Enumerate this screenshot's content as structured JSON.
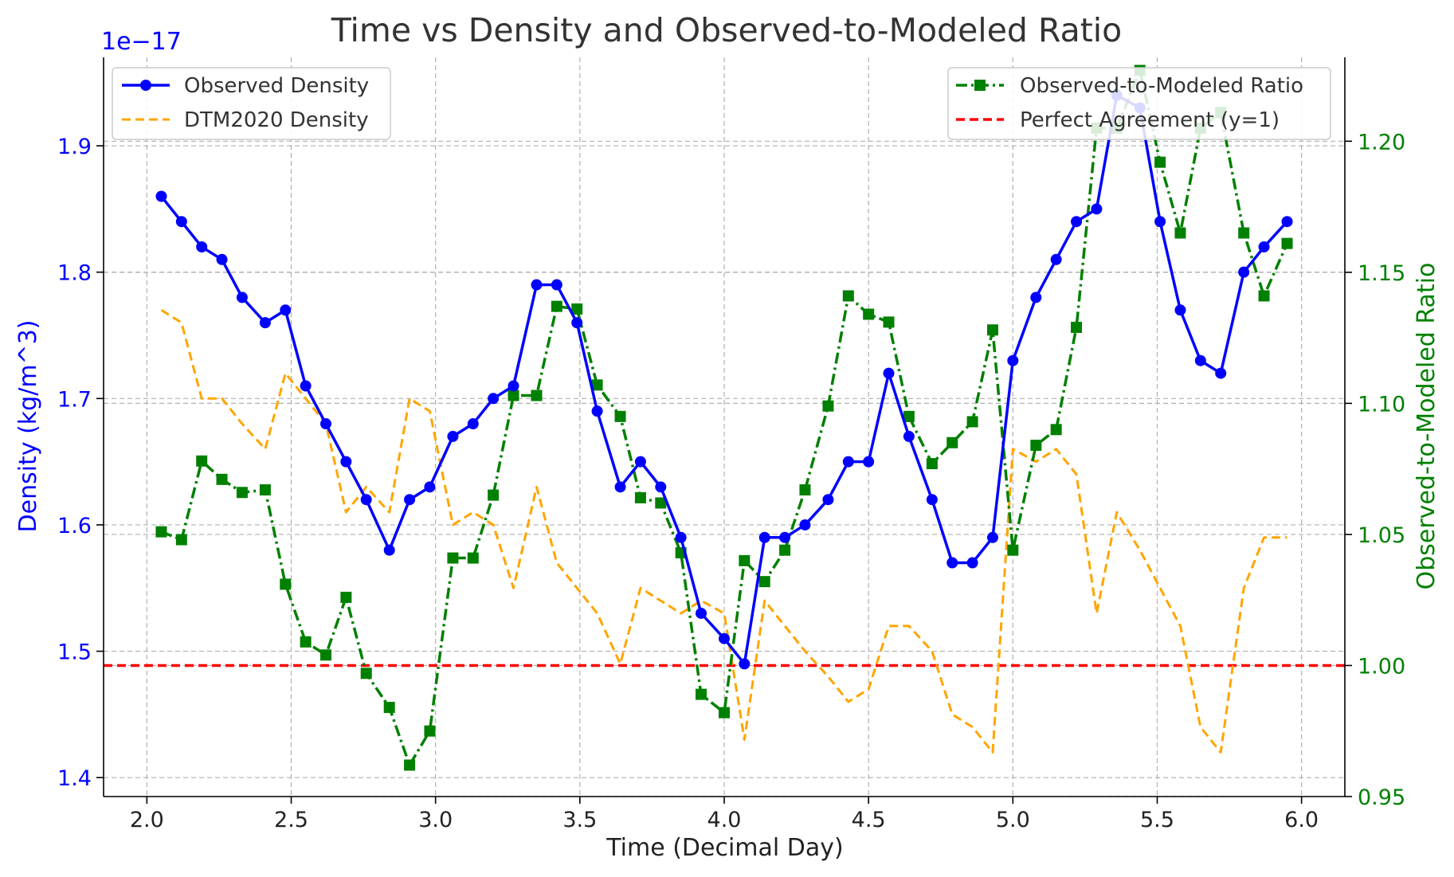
{
  "chart_data": {
    "type": "line",
    "title": "Time vs Density and Observed-to-Modeled Ratio",
    "xlabel": "Time (Decimal Day)",
    "ylabel_left": "Density (kg/m^3)",
    "ylabel_right": "Observed-to-Modeled Ratio",
    "y_left_offset_label": "1e−17",
    "xlim": [
      1.85,
      6.15
    ],
    "ylim_left": [
      1.385,
      1.97
    ],
    "ylim_right": [
      0.95,
      1.232
    ],
    "x_ticks": [
      2.0,
      2.5,
      3.0,
      3.5,
      4.0,
      4.5,
      5.0,
      5.5,
      6.0
    ],
    "x_tick_labels": [
      "2.0",
      "2.5",
      "3.0",
      "3.5",
      "4.0",
      "4.5",
      "5.0",
      "5.5",
      "6.0"
    ],
    "y_left_ticks": [
      1.4,
      1.5,
      1.6,
      1.7,
      1.8,
      1.9
    ],
    "y_left_tick_labels": [
      "1.4",
      "1.5",
      "1.6",
      "1.7",
      "1.8",
      "1.9"
    ],
    "y_right_ticks": [
      0.95,
      1.0,
      1.05,
      1.1,
      1.15,
      1.2
    ],
    "y_right_tick_labels": [
      "0.95",
      "1.00",
      "1.05",
      "1.10",
      "1.15",
      "1.20"
    ],
    "grid": true,
    "x": [
      2.05,
      2.12,
      2.19,
      2.26,
      2.33,
      2.41,
      2.48,
      2.55,
      2.62,
      2.69,
      2.76,
      2.84,
      2.91,
      2.98,
      3.06,
      3.13,
      3.2,
      3.27,
      3.35,
      3.42,
      3.49,
      3.56,
      3.64,
      3.71,
      3.78,
      3.85,
      3.92,
      4.0,
      4.07,
      4.14,
      4.21,
      4.28,
      4.36,
      4.43,
      4.5,
      4.57,
      4.64,
      4.72,
      4.79,
      4.86,
      4.93,
      5.0,
      5.08,
      5.15,
      5.22,
      5.29,
      5.36,
      5.44,
      5.51,
      5.58,
      5.65,
      5.72,
      5.8,
      5.87,
      5.95
    ],
    "series": [
      {
        "name": "Observed Density",
        "axis": "left",
        "color": "#0000ff",
        "style": "solid-circle",
        "values": [
          1.86,
          1.84,
          1.82,
          1.81,
          1.78,
          1.76,
          1.77,
          1.71,
          1.68,
          1.65,
          1.62,
          1.58,
          1.62,
          1.63,
          1.67,
          1.68,
          1.7,
          1.71,
          1.79,
          1.79,
          1.76,
          1.69,
          1.63,
          1.65,
          1.63,
          1.59,
          1.53,
          1.51,
          1.49,
          1.59,
          1.59,
          1.6,
          1.62,
          1.65,
          1.65,
          1.72,
          1.67,
          1.62,
          1.57,
          1.57,
          1.59,
          1.73,
          1.78,
          1.81,
          1.84,
          1.85,
          1.94,
          1.93,
          1.84,
          1.77,
          1.73,
          1.72,
          1.8,
          1.82,
          1.84
        ]
      },
      {
        "name": "DTM2020 Density",
        "axis": "left",
        "color": "#ffa500",
        "style": "dashed",
        "values": [
          1.77,
          1.76,
          1.7,
          1.7,
          1.68,
          1.66,
          1.72,
          1.7,
          1.68,
          1.61,
          1.63,
          1.61,
          1.7,
          1.69,
          1.6,
          1.61,
          1.6,
          1.55,
          1.63,
          1.57,
          1.55,
          1.53,
          1.49,
          1.55,
          1.54,
          1.53,
          1.54,
          1.53,
          1.43,
          1.54,
          1.52,
          1.5,
          1.48,
          1.46,
          1.47,
          1.52,
          1.52,
          1.5,
          1.45,
          1.44,
          1.42,
          1.66,
          1.65,
          1.66,
          1.64,
          1.53,
          1.61,
          1.58,
          1.55,
          1.52,
          1.44,
          1.42,
          1.55,
          1.59,
          1.59
        ]
      },
      {
        "name": "Observed-to-Modeled Ratio",
        "axis": "right",
        "color": "#008000",
        "style": "dashdot-square",
        "values": [
          1.051,
          1.048,
          1.078,
          1.071,
          1.066,
          1.067,
          1.031,
          1.009,
          1.004,
          1.026,
          0.997,
          0.984,
          0.962,
          0.975,
          1.041,
          1.041,
          1.065,
          1.103,
          1.103,
          1.137,
          1.136,
          1.107,
          1.095,
          1.064,
          1.062,
          1.043,
          0.989,
          0.982,
          1.04,
          1.032,
          1.044,
          1.067,
          1.099,
          1.141,
          1.134,
          1.131,
          1.095,
          1.077,
          1.085,
          1.093,
          1.128,
          1.044,
          1.084,
          1.09,
          1.129,
          1.205,
          1.205,
          1.227,
          1.192,
          1.165,
          1.205,
          1.211,
          1.165,
          1.141,
          1.161
        ]
      },
      {
        "name": "Perfect Agreement (y=1)",
        "axis": "right",
        "color": "#ff0000",
        "style": "dashed-hline",
        "value": 1.0
      }
    ],
    "legends": {
      "left": [
        "Observed Density",
        "DTM2020 Density"
      ],
      "right": [
        "Observed-to-Modeled Ratio",
        "Perfect Agreement (y=1)"
      ]
    },
    "legend_placement": {
      "left": "upper-left",
      "right": "upper-right"
    }
  },
  "colors": {
    "left_axis": "#0000ff",
    "right_axis": "#008000",
    "title": "#333333",
    "text": "#222222"
  }
}
